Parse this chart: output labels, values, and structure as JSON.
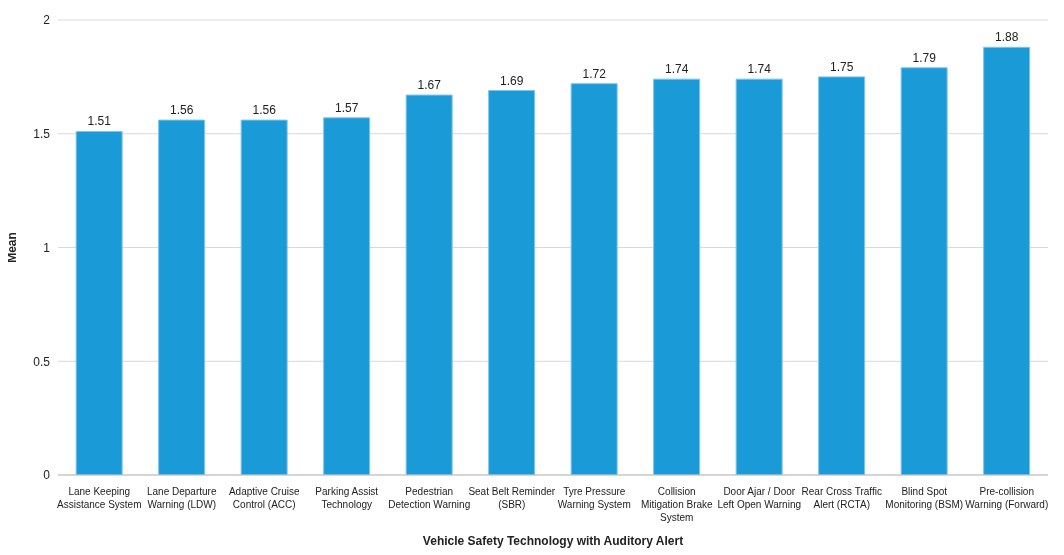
{
  "chart_data": {
    "type": "bar",
    "xlabel": "Vehicle Safety Technology with Auditory Alert",
    "ylabel": "Mean",
    "categories": [
      "Lane Keeping Assistance System",
      "Lane Departure Warning (LDW)",
      "Adaptive Cruise Control (ACC)",
      "Parking Assist Technology",
      "Pedestrian Detection Warning",
      "Seat Belt Reminder (SBR)",
      "Tyre Pressure Warning System",
      "Collision Mitigation Brake System",
      "Door Ajar / Door Left Open Warning",
      "Rear Cross Traffic Alert (RCTA)",
      "Blind Spot Monitoring (BSM)",
      "Pre-collision Warning (Forward)"
    ],
    "values": [
      1.51,
      1.56,
      1.56,
      1.57,
      1.67,
      1.69,
      1.72,
      1.74,
      1.74,
      1.75,
      1.79,
      1.88
    ],
    "color": "#1a9bd7",
    "ylim": [
      0,
      2
    ],
    "yticks": [
      0,
      0.5,
      1,
      1.5,
      2
    ],
    "grid": "y",
    "data_labels": true
  }
}
